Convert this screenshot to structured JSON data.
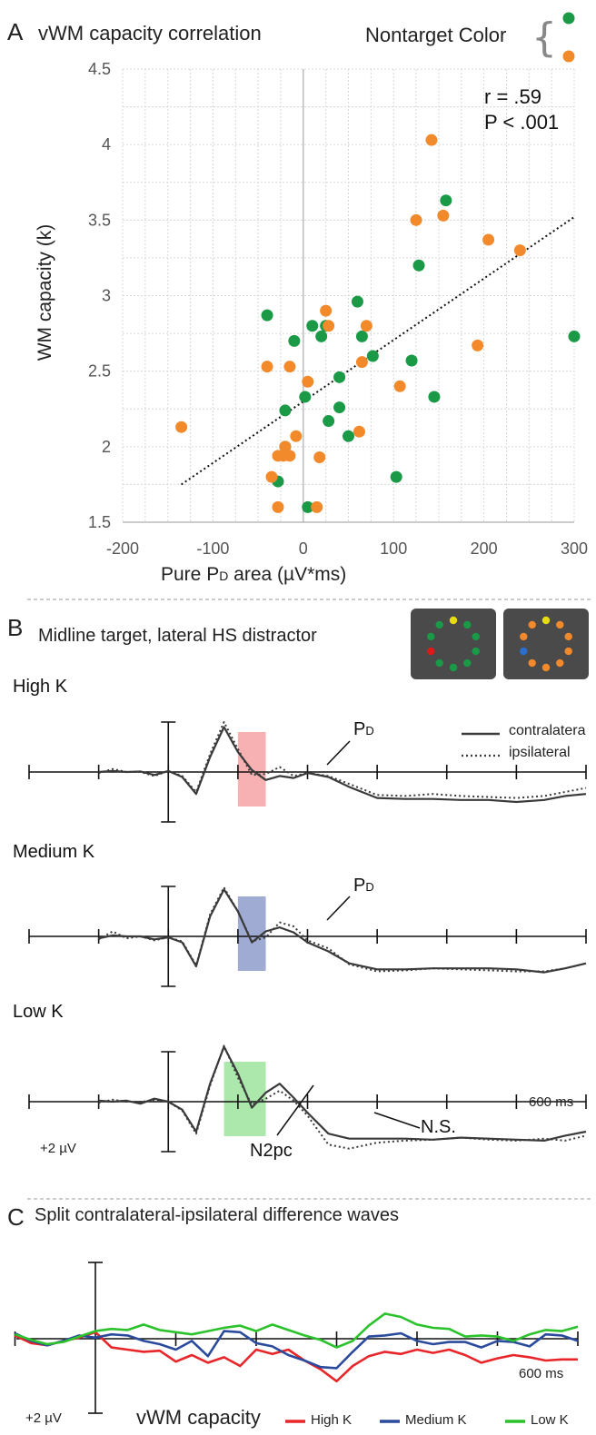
{
  "colors": {
    "green": "#1a9a46",
    "orange": "#f28a2c",
    "red": "#e8262a",
    "blue": "#2a4a9c",
    "lightgreen": "#2cc22c",
    "wave": "#3a3a3a",
    "pd_high": "#f6a3a6",
    "pd_med": "#8e9cca",
    "n2pc_low": "#9ee39e",
    "grid": "#d8d8d8"
  },
  "panel_a": {
    "letter": "A",
    "title": "vWM capacity correlation",
    "legend_title": "Nontarget Color",
    "legend_brace": "{",
    "stats": {
      "r": "r = .59",
      "p": "P < .001"
    },
    "xlabel_pre": "Pure P",
    "xlabel_sub": "D",
    "xlabel_post": " area (µV*ms)",
    "ylabel": "WM capacity (k)",
    "xticks": [
      "-200",
      "-100",
      "0",
      "100",
      "200",
      "300"
    ],
    "yticks": [
      "1.5",
      "2",
      "2.5",
      "3",
      "3.5",
      "4",
      "4.5"
    ]
  },
  "panel_b": {
    "letter": "B",
    "title": "Midline target, lateral HS distractor",
    "rows": [
      "High K",
      "Medium K",
      "Low K"
    ],
    "pd_label": "P",
    "pd_sub": "D",
    "legend": {
      "contra": "contralatera",
      "ipsi": "ipsilateral"
    },
    "n2pc": "N2pc",
    "ns": "N.S.",
    "time_label": "600 ms",
    "amp_label": "+2 µV"
  },
  "panel_c": {
    "letter": "C",
    "title": "Split contralateral-ipsilateral difference waves",
    "time_label": "600 ms",
    "amp_label": "+2 µV",
    "legend_title": "vWM capacity",
    "legend": [
      "High K",
      "Medium K",
      "Low K"
    ]
  },
  "chart_data": [
    {
      "type": "scatter",
      "title": "vWM capacity correlation",
      "xlabel": "Pure PD area (µV*ms)",
      "ylabel": "WM capacity (k)",
      "xlim": [
        -200,
        300
      ],
      "ylim": [
        1.5,
        4.5
      ],
      "grid": true,
      "legend_placement": "top-right",
      "series": [
        {
          "name": "green",
          "color": "#1a9a46",
          "points": [
            [
              -40,
              2.87
            ],
            [
              -10,
              2.7
            ],
            [
              5,
              1.6
            ],
            [
              10,
              2.8
            ],
            [
              20,
              2.73
            ],
            [
              25,
              2.8
            ],
            [
              2,
              2.33
            ],
            [
              -20,
              2.24
            ],
            [
              28,
              2.17
            ],
            [
              40,
              2.46
            ],
            [
              40,
              2.26
            ],
            [
              60,
              2.96
            ],
            [
              65,
              2.73
            ],
            [
              77,
              2.6
            ],
            [
              50,
              2.07
            ],
            [
              -20,
              2.0
            ],
            [
              -28,
              1.77
            ],
            [
              103,
              1.8
            ],
            [
              120,
              2.57
            ],
            [
              128,
              3.2
            ],
            [
              145,
              2.33
            ],
            [
              158,
              3.63
            ],
            [
              300,
              2.73
            ]
          ]
        },
        {
          "name": "orange",
          "color": "#f28a2c",
          "points": [
            [
              -135,
              2.13
            ],
            [
              -40,
              2.53
            ],
            [
              -15,
              2.53
            ],
            [
              -35,
              1.8
            ],
            [
              -28,
              1.94
            ],
            [
              -22,
              1.94
            ],
            [
              -20,
              2.0
            ],
            [
              -15,
              1.94
            ],
            [
              -8,
              2.07
            ],
            [
              -28,
              1.6
            ],
            [
              15,
              1.6
            ],
            [
              18,
              1.93
            ],
            [
              25,
              2.9
            ],
            [
              28,
              2.8
            ],
            [
              5,
              2.43
            ],
            [
              65,
              2.56
            ],
            [
              70,
              2.8
            ],
            [
              62,
              2.1
            ],
            [
              107,
              2.4
            ],
            [
              125,
              3.5
            ],
            [
              142,
              4.03
            ],
            [
              155,
              3.53
            ],
            [
              193,
              2.67
            ],
            [
              205,
              3.37
            ],
            [
              240,
              3.3
            ]
          ]
        }
      ],
      "trendline": {
        "from": [
          -135,
          1.75
        ],
        "to": [
          300,
          3.52
        ]
      },
      "annotation": [
        "r = .59",
        "P < .001"
      ]
    },
    {
      "type": "line",
      "title": "Midline target, lateral HS distractor",
      "x_ticks_ms": [
        -200,
        -100,
        0,
        100,
        200,
        300,
        400,
        500,
        600
      ],
      "panels": [
        {
          "name": "High K",
          "shaded_window_ms": [
            100,
            140
          ],
          "series": [
            {
              "name": "contralatera",
              "x": [
                -100,
                -80,
                -60,
                -40,
                -20,
                0,
                20,
                40,
                60,
                80,
                100,
                120,
                140,
                160,
                180,
                200,
                230,
                260,
                300,
                340,
                380,
                420,
                460,
                500,
                540,
                570,
                600
              ],
              "y": [
                0,
                0.1,
                0,
                0.05,
                -0.3,
                0.1,
                -0.5,
                -2.2,
                1.5,
                4.5,
                2.0,
                0.2,
                -0.8,
                -0.4,
                -0.6,
                -0.1,
                -0.5,
                -1.5,
                -2.6,
                -2.7,
                -2.7,
                -2.8,
                -2.8,
                -3.0,
                -2.8,
                -2.4,
                -2.2
              ]
            },
            {
              "name": "ipsilateral",
              "x": [
                -100,
                -80,
                -60,
                -40,
                -20,
                0,
                20,
                40,
                60,
                80,
                100,
                120,
                140,
                160,
                180,
                200,
                230,
                260,
                300,
                340,
                380,
                420,
                460,
                500,
                540,
                570,
                600
              ],
              "y": [
                -0.1,
                0.3,
                0,
                0,
                -0.4,
                0.1,
                -0.4,
                -2.0,
                1.8,
                5.0,
                2.3,
                -0.3,
                -0.2,
                0.5,
                -0.4,
                -0.1,
                -0.4,
                -1.2,
                -2.3,
                -2.4,
                -2.2,
                -2.4,
                -2.5,
                -2.6,
                -2.4,
                -2.0,
                -1.6
              ]
            }
          ]
        },
        {
          "name": "Medium K",
          "shaded_window_ms": [
            100,
            140
          ],
          "series": [
            {
              "name": "contralatera",
              "x": [
                -100,
                -80,
                -60,
                -40,
                -20,
                0,
                20,
                40,
                60,
                80,
                100,
                120,
                140,
                160,
                180,
                200,
                230,
                260,
                300,
                340,
                380,
                420,
                460,
                500,
                540,
                570,
                600
              ],
              "y": [
                -0.2,
                0.1,
                0,
                0,
                -0.3,
                -0.1,
                -0.6,
                -3.0,
                2.0,
                4.7,
                2.5,
                -0.6,
                0.5,
                0.9,
                0.4,
                -0.6,
                -1.5,
                -2.7,
                -3.3,
                -3.3,
                -3.2,
                -3.2,
                -3.2,
                -3.3,
                -3.6,
                -3.2,
                -2.7
              ]
            },
            {
              "name": "ipsilateral",
              "x": [
                -100,
                -80,
                -60,
                -40,
                -20,
                0,
                20,
                40,
                60,
                80,
                100,
                120,
                140,
                160,
                180,
                200,
                230,
                260,
                300,
                340,
                380,
                420,
                460,
                500,
                540,
                570,
                600
              ],
              "y": [
                -0.3,
                0.5,
                -0.2,
                0,
                -0.4,
                -0.1,
                -0.5,
                -2.9,
                2.2,
                4.9,
                2.5,
                -0.5,
                -0.1,
                1.4,
                1.0,
                -0.4,
                -1.2,
                -2.8,
                -3.5,
                -3.4,
                -3.2,
                -3.3,
                -3.4,
                -3.5,
                -3.5,
                -3.2,
                -2.7
              ]
            }
          ]
        },
        {
          "name": "Low K",
          "shaded_window_ms": [
            80,
            140
          ],
          "series": [
            {
              "name": "contralatera",
              "x": [
                -100,
                -80,
                -60,
                -40,
                -20,
                0,
                20,
                40,
                60,
                80,
                100,
                120,
                140,
                160,
                180,
                200,
                230,
                260,
                300,
                340,
                380,
                420,
                460,
                500,
                540,
                570,
                600
              ],
              "y": [
                0.1,
                0,
                0.1,
                -0.2,
                0.3,
                0,
                -0.8,
                -3.0,
                1.8,
                5.5,
                2.8,
                -0.6,
                0.9,
                1.8,
                0.4,
                -1.1,
                -3.2,
                -3.7,
                -3.7,
                -3.7,
                -3.8,
                -3.6,
                -3.7,
                -3.8,
                -3.9,
                -3.4,
                -3.0
              ]
            },
            {
              "name": "ipsilateral",
              "x": [
                -100,
                -80,
                -60,
                -40,
                -20,
                0,
                20,
                40,
                60,
                80,
                100,
                120,
                140,
                160,
                180,
                200,
                230,
                260,
                300,
                340,
                380,
                420,
                460,
                500,
                540,
                570,
                600
              ],
              "y": [
                -0.1,
                0.2,
                0,
                0,
                0.1,
                0,
                -0.9,
                -3.2,
                1.6,
                5.6,
                2.4,
                -0.3,
                0.3,
                1.1,
                0.1,
                -1.4,
                -4.3,
                -4.7,
                -4.1,
                -3.9,
                -3.8,
                -3.6,
                -3.8,
                -3.9,
                -3.7,
                -3.9,
                -3.4
              ]
            }
          ]
        }
      ]
    },
    {
      "type": "line",
      "title": "Split contralateral-ipsilateral difference waves",
      "x_ticks_ms": [
        -100,
        0,
        100,
        200,
        300,
        400,
        500,
        600
      ],
      "legend_placement": "bottom",
      "series": [
        {
          "name": "High K",
          "color": "#e8262a",
          "x": [
            -100,
            -80,
            -60,
            -40,
            -20,
            0,
            20,
            40,
            60,
            80,
            100,
            120,
            140,
            160,
            180,
            200,
            220,
            240,
            260,
            280,
            300,
            320,
            340,
            360,
            380,
            400,
            420,
            440,
            460,
            480,
            500,
            520,
            540,
            560,
            580,
            600
          ],
          "y": [
            0.3,
            -0.4,
            -0.6,
            -0.2,
            0.1,
            0.6,
            -0.8,
            -1.0,
            -1.2,
            -1.1,
            -2.1,
            -1.5,
            -2.2,
            -1.7,
            -2.5,
            -1.0,
            -1.4,
            -1.0,
            -2.0,
            -2.8,
            -3.9,
            -2.5,
            -1.6,
            -1.2,
            -1.4,
            -1.0,
            -1.3,
            -1.0,
            -1.5,
            -2.2,
            -1.8,
            -1.5,
            -1.7,
            -2.0,
            -1.9,
            -1.9
          ]
        },
        {
          "name": "Medium K",
          "color": "#2a4a9c",
          "x": [
            -100,
            -80,
            -60,
            -40,
            -20,
            0,
            20,
            40,
            60,
            80,
            100,
            120,
            140,
            160,
            180,
            200,
            220,
            240,
            260,
            280,
            300,
            320,
            340,
            360,
            380,
            400,
            420,
            440,
            460,
            480,
            500,
            520,
            540,
            560,
            580,
            600
          ],
          "y": [
            0.5,
            -0.2,
            -0.6,
            -0.2,
            0.3,
            0.1,
            0.4,
            0.3,
            -0.2,
            -0.5,
            -1.0,
            -0.2,
            -1.6,
            0.7,
            0.6,
            -0.4,
            -0.7,
            -1.5,
            -2.0,
            -2.6,
            -2.7,
            -1.2,
            0.2,
            0.3,
            0.5,
            -0.2,
            -0.5,
            -0.3,
            -0.3,
            -0.8,
            -0.2,
            -0.3,
            -0.7,
            0.4,
            0.3,
            -0.2
          ]
        },
        {
          "name": "Low K",
          "color": "#2cc22c",
          "x": [
            -100,
            -80,
            -60,
            -40,
            -20,
            0,
            20,
            40,
            60,
            80,
            100,
            120,
            140,
            160,
            180,
            200,
            220,
            240,
            260,
            280,
            300,
            320,
            340,
            360,
            380,
            400,
            420,
            440,
            460,
            480,
            500,
            520,
            540,
            560,
            580,
            600
          ],
          "y": [
            0.4,
            -0.1,
            -0.5,
            -0.3,
            0.2,
            0.7,
            0.9,
            0.8,
            1.3,
            0.8,
            0.6,
            0.4,
            0.7,
            1.0,
            1.2,
            0.7,
            1.3,
            0.8,
            0.3,
            -0.1,
            -0.8,
            -0.2,
            1.2,
            2.3,
            2.0,
            1.3,
            1.0,
            0.9,
            0.2,
            0.3,
            0.2,
            -0.2,
            0.4,
            0.8,
            0.7,
            1.1
          ]
        }
      ]
    }
  ]
}
